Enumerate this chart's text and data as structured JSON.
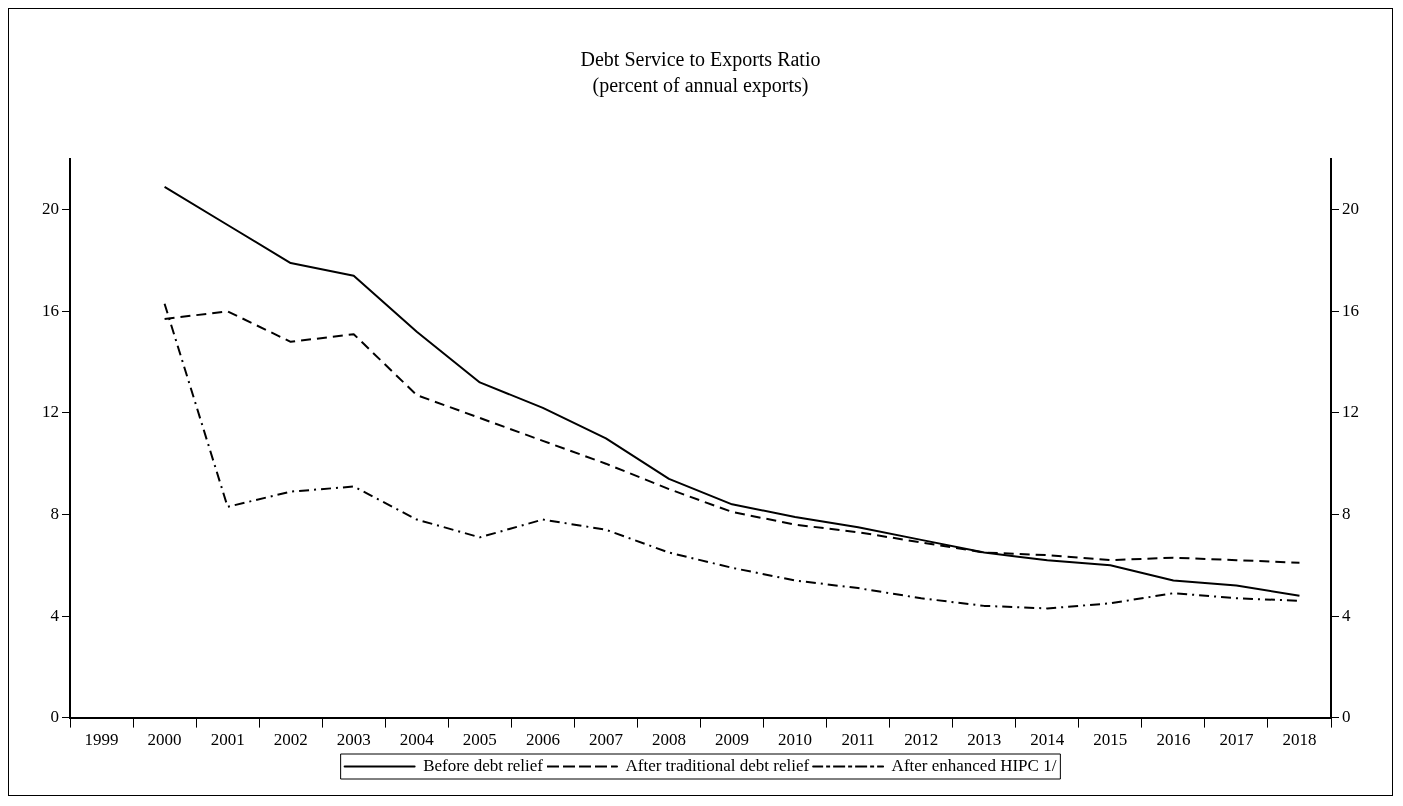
{
  "chart_data": {
    "type": "line",
    "title": "Debt Service to Exports Ratio",
    "subtitle": "(percent of annual exports)",
    "categories": [
      "1999",
      "2000",
      "2001",
      "2002",
      "2003",
      "2004",
      "2005",
      "2006",
      "2007",
      "2008",
      "2009",
      "2010",
      "2011",
      "2012",
      "2013",
      "2014",
      "2015",
      "2016",
      "2017",
      "2018"
    ],
    "series": [
      {
        "name": "Before debt relief",
        "color": "#000000",
        "line_style": "solid",
        "values": [
          null,
          20.9,
          19.4,
          17.9,
          17.4,
          15.2,
          13.2,
          12.2,
          11.0,
          9.4,
          8.4,
          7.9,
          7.5,
          7.0,
          6.5,
          6.2,
          6.0,
          5.4,
          5.2,
          4.8
        ]
      },
      {
        "name": "After traditional debt relief",
        "color": "#000000",
        "line_style": "dashed",
        "values": [
          null,
          15.7,
          16.0,
          14.8,
          15.1,
          12.7,
          11.8,
          10.9,
          10.0,
          9.0,
          8.1,
          7.6,
          7.3,
          6.9,
          6.5,
          6.4,
          6.2,
          6.3,
          6.2,
          6.1
        ]
      },
      {
        "name": "After enhanced HIPC 1/",
        "color": "#000000",
        "line_style": "dashdot",
        "values": [
          null,
          16.3,
          8.3,
          8.9,
          9.1,
          7.8,
          7.1,
          7.8,
          7.4,
          6.5,
          5.9,
          5.4,
          5.1,
          4.7,
          4.4,
          4.3,
          4.5,
          4.9,
          4.7,
          4.6
        ]
      }
    ],
    "ylim": [
      0,
      22
    ],
    "yticks": [
      0,
      4,
      8,
      12,
      16,
      20
    ],
    "y2lim": [
      0,
      22
    ],
    "y2ticks": [
      0,
      4,
      8,
      12,
      16,
      20
    ],
    "grid": false,
    "legend": "bottom",
    "marker": "none"
  }
}
